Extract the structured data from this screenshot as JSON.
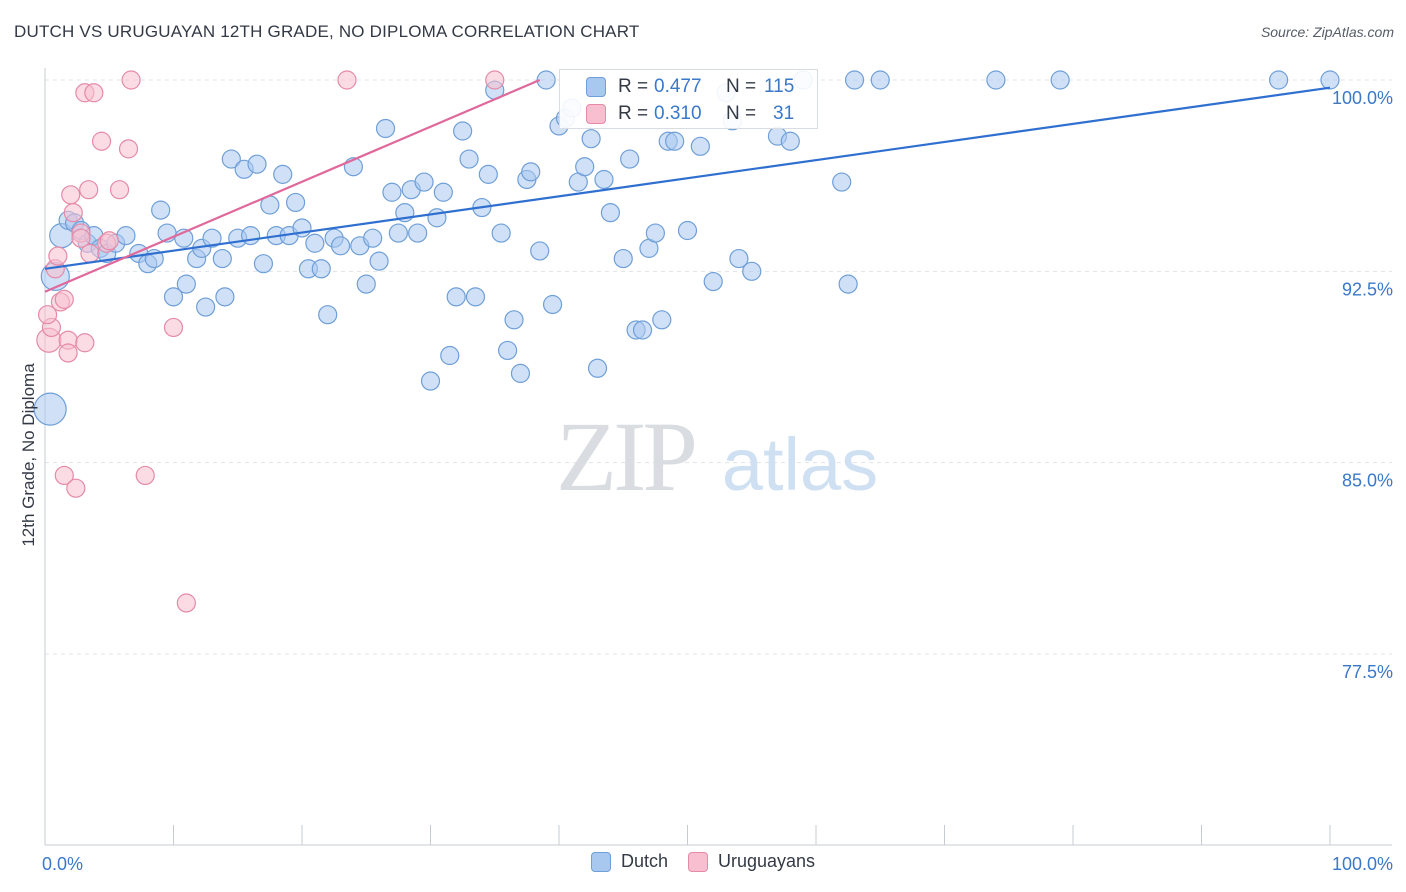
{
  "title": "DUTCH VS URUGUAYAN 12TH GRADE, NO DIPLOMA CORRELATION CHART",
  "source": "Source: ZipAtlas.com",
  "watermark": {
    "zip": "ZIP",
    "atlas": "atlas"
  },
  "stats": [
    {
      "r_label": "R =",
      "r_value": "0.477",
      "n_label": "N =",
      "n_value": "115",
      "color": "#a9c8f0",
      "border": "#6f9fd8"
    },
    {
      "r_label": "R =",
      "r_value": "0.310",
      "n_label": "N =",
      "n_value": "31",
      "color": "#f7bfd0",
      "border": "#e58aa8"
    }
  ],
  "legend": [
    {
      "label": "Dutch",
      "color": "#a9c8f0",
      "border": "#6f9fd8"
    },
    {
      "label": "Uruguayans",
      "color": "#f7bfd0",
      "border": "#e58aa8"
    }
  ],
  "chart_data": {
    "type": "scatter",
    "title": "DUTCH VS URUGUAYAN 12TH GRADE, NO DIPLOMA CORRELATION CHART",
    "xlabel": "",
    "ylabel": "12th Grade, No Diploma",
    "xlim": [
      0,
      100
    ],
    "ylim": [
      70,
      101.5
    ],
    "x_tick_labels": [
      "0.0%",
      "100.0%"
    ],
    "y_ticks": [
      100,
      92.5,
      85,
      77.5
    ],
    "y_tick_labels": [
      "100.0%",
      "92.5%",
      "85.0%",
      "77.5%"
    ],
    "grid": "horizontal dashed",
    "series": [
      {
        "name": "Dutch",
        "color": "#6f9fd8",
        "fill": "#a9c8f0",
        "line_color": "#2f6fd0",
        "trend": {
          "x": [
            0,
            100
          ],
          "y": [
            92.6,
            99.7
          ]
        },
        "points": [
          [
            0.4,
            87.1,
            16
          ],
          [
            0.8,
            92.3,
            14
          ],
          [
            1.3,
            93.9,
            12
          ],
          [
            1.8,
            94.5,
            9
          ],
          [
            2.3,
            94.4,
            9
          ],
          [
            2.8,
            94.1,
            9
          ],
          [
            3.3,
            93.6,
            9
          ],
          [
            3.8,
            93.9,
            9
          ],
          [
            4.3,
            93.4,
            9
          ],
          [
            4.8,
            93.2,
            9
          ],
          [
            5.5,
            93.6,
            9
          ],
          [
            6.3,
            93.9,
            9
          ],
          [
            7.3,
            93.2,
            9
          ],
          [
            8.0,
            92.8,
            9
          ],
          [
            8.5,
            93.0,
            9
          ],
          [
            9.0,
            94.9,
            9
          ],
          [
            9.5,
            94.0,
            9
          ],
          [
            10.0,
            91.5,
            9
          ],
          [
            10.8,
            93.8,
            9
          ],
          [
            11.0,
            92.0,
            9
          ],
          [
            11.8,
            93.0,
            9
          ],
          [
            12.2,
            93.4,
            9
          ],
          [
            12.5,
            91.1,
            9
          ],
          [
            13.0,
            93.8,
            9
          ],
          [
            13.8,
            93.0,
            9
          ],
          [
            14.0,
            91.5,
            9
          ],
          [
            14.5,
            96.9,
            9
          ],
          [
            15.0,
            93.8,
            9
          ],
          [
            15.5,
            96.5,
            9
          ],
          [
            16.0,
            93.9,
            9
          ],
          [
            16.5,
            96.7,
            9
          ],
          [
            17.0,
            92.8,
            9
          ],
          [
            17.5,
            95.1,
            9
          ],
          [
            18.0,
            93.9,
            9
          ],
          [
            18.5,
            96.3,
            9
          ],
          [
            19.0,
            93.9,
            9
          ],
          [
            19.5,
            95.2,
            9
          ],
          [
            20.0,
            94.2,
            9
          ],
          [
            20.5,
            92.6,
            9
          ],
          [
            21.0,
            93.6,
            9
          ],
          [
            21.5,
            92.6,
            9
          ],
          [
            22.0,
            90.8,
            9
          ],
          [
            22.5,
            93.8,
            9
          ],
          [
            23.0,
            93.5,
            9
          ],
          [
            24.0,
            96.6,
            9
          ],
          [
            24.5,
            93.5,
            9
          ],
          [
            25.0,
            92.0,
            9
          ],
          [
            25.5,
            93.8,
            9
          ],
          [
            26.0,
            92.9,
            9
          ],
          [
            26.5,
            98.1,
            9
          ],
          [
            27.0,
            95.6,
            9
          ],
          [
            27.5,
            94.0,
            9
          ],
          [
            28.0,
            94.8,
            9
          ],
          [
            28.5,
            95.7,
            9
          ],
          [
            29.0,
            94.0,
            9
          ],
          [
            29.5,
            96.0,
            9
          ],
          [
            30.0,
            88.2,
            9
          ],
          [
            30.5,
            94.6,
            9
          ],
          [
            31.0,
            95.6,
            9
          ],
          [
            31.5,
            89.2,
            9
          ],
          [
            32.0,
            91.5,
            9
          ],
          [
            32.5,
            98.0,
            9
          ],
          [
            33.0,
            96.9,
            9
          ],
          [
            33.5,
            91.5,
            9
          ],
          [
            34.0,
            95.0,
            9
          ],
          [
            34.5,
            96.3,
            9
          ],
          [
            35.0,
            99.6,
            9
          ],
          [
            35.5,
            94.0,
            9
          ],
          [
            36.0,
            89.4,
            9
          ],
          [
            36.5,
            90.6,
            9
          ],
          [
            37.0,
            88.5,
            9
          ],
          [
            37.5,
            96.1,
            9
          ],
          [
            37.8,
            96.4,
            9
          ],
          [
            38.5,
            93.3,
            9
          ],
          [
            39.0,
            100.0,
            9
          ],
          [
            39.5,
            91.2,
            9
          ],
          [
            40.0,
            98.2,
            9
          ],
          [
            40.5,
            98.5,
            9
          ],
          [
            41.0,
            98.9,
            9
          ],
          [
            41.5,
            96.0,
            9
          ],
          [
            42.0,
            96.6,
            9
          ],
          [
            42.5,
            97.7,
            9
          ],
          [
            43.0,
            88.7,
            9
          ],
          [
            43.5,
            96.1,
            9
          ],
          [
            44.0,
            94.8,
            9
          ],
          [
            45.0,
            93.0,
            9
          ],
          [
            45.5,
            96.9,
            9
          ],
          [
            46.0,
            90.2,
            9
          ],
          [
            46.5,
            90.2,
            9
          ],
          [
            47.0,
            93.4,
            9
          ],
          [
            47.5,
            94.0,
            9
          ],
          [
            48.0,
            90.6,
            9
          ],
          [
            48.5,
            97.6,
            9
          ],
          [
            49.0,
            97.6,
            9
          ],
          [
            50.0,
            94.1,
            9
          ],
          [
            51.0,
            97.4,
            9
          ],
          [
            52.0,
            92.1,
            9
          ],
          [
            53.0,
            99.5,
            9
          ],
          [
            53.5,
            98.4,
            9
          ],
          [
            54.0,
            93.0,
            9
          ],
          [
            55.0,
            92.5,
            9
          ],
          [
            57.0,
            97.8,
            9
          ],
          [
            58.0,
            97.6,
            9
          ],
          [
            59.0,
            100.0,
            9
          ],
          [
            62.0,
            96.0,
            9
          ],
          [
            62.5,
            92.0,
            9
          ],
          [
            63.0,
            100.0,
            9
          ],
          [
            65.0,
            100.0,
            9
          ],
          [
            74.0,
            100.0,
            9
          ],
          [
            79.0,
            100.0,
            9
          ],
          [
            96.0,
            100.0,
            9
          ],
          [
            100.0,
            100.0,
            9
          ]
        ]
      },
      {
        "name": "Uruguayans",
        "color": "#e58aa8",
        "fill": "#f7bfd0",
        "line_color": "#e0689a",
        "trend": {
          "x": [
            0,
            38.5
          ],
          "y": [
            91.7,
            100.0
          ]
        },
        "points": [
          [
            0.3,
            89.8,
            12
          ],
          [
            0.5,
            90.3,
            9
          ],
          [
            0.8,
            92.6,
            9
          ],
          [
            1.0,
            93.1,
            9
          ],
          [
            1.2,
            91.3,
            9
          ],
          [
            1.5,
            91.4,
            9
          ],
          [
            1.5,
            84.5,
            9
          ],
          [
            1.8,
            89.8,
            9
          ],
          [
            1.8,
            89.3,
            9
          ],
          [
            2.0,
            95.5,
            9
          ],
          [
            2.2,
            94.8,
            9
          ],
          [
            2.4,
            84.0,
            9
          ],
          [
            2.8,
            94.0,
            9
          ],
          [
            2.8,
            93.8,
            9
          ],
          [
            3.1,
            89.7,
            9
          ],
          [
            3.1,
            99.5,
            9
          ],
          [
            3.4,
            95.7,
            9
          ],
          [
            3.5,
            93.2,
            9
          ],
          [
            3.8,
            99.5,
            9
          ],
          [
            4.4,
            97.6,
            9
          ],
          [
            4.8,
            93.6,
            9
          ],
          [
            5.0,
            93.7,
            9
          ],
          [
            5.8,
            95.7,
            9
          ],
          [
            6.5,
            97.3,
            9
          ],
          [
            6.7,
            100.0,
            9
          ],
          [
            7.8,
            84.5,
            9
          ],
          [
            10.0,
            90.3,
            9
          ],
          [
            11.0,
            79.5,
            9
          ],
          [
            23.5,
            100.0,
            9
          ],
          [
            35.0,
            100.0,
            9
          ],
          [
            0.2,
            90.8,
            9
          ]
        ]
      }
    ]
  }
}
